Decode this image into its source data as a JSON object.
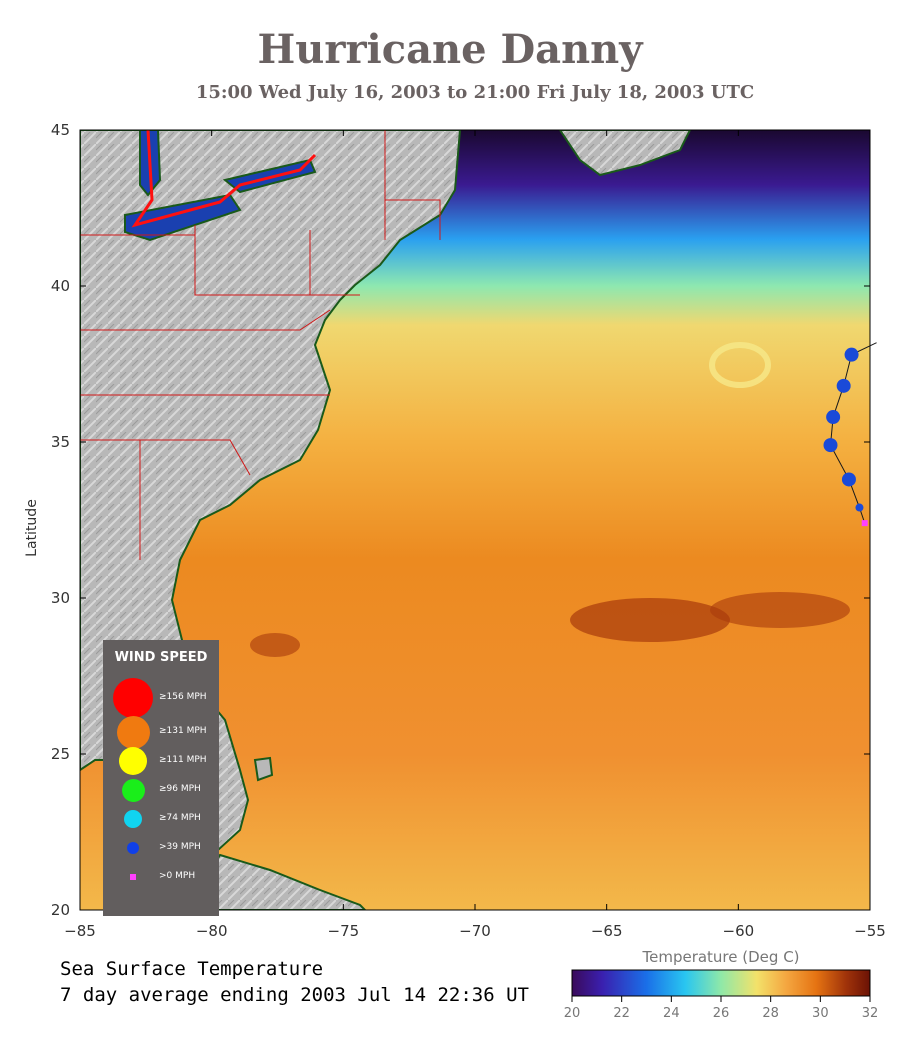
{
  "header": {
    "title": "Hurricane Danny",
    "subtitle": "15:00 Wed July 16, 2003 to 21:00 Fri July 18, 2003  UTC"
  },
  "caption": {
    "line1": "Sea Surface Temperature",
    "line2": "7 day average ending 2003 Jul 14 22:36 UT"
  },
  "axes": {
    "ylabel": "Latitude",
    "lon_min": -85,
    "lon_max": -55,
    "lat_min": 20,
    "lat_max": 45,
    "x_ticks": [
      "−85",
      "−80",
      "−75",
      "−70",
      "−65",
      "−60",
      "−55"
    ],
    "x_tick_values": [
      -85,
      -80,
      -75,
      -70,
      -65,
      -60,
      -55
    ],
    "y_ticks": [
      "45",
      "40",
      "35",
      "30",
      "25",
      "20"
    ],
    "y_tick_values": [
      45,
      40,
      35,
      30,
      25,
      20
    ]
  },
  "colorbar": {
    "title": "Temperature (Deg C)",
    "min": 20,
    "max": 32,
    "tick_labels": [
      "20",
      "22",
      "24",
      "26",
      "28",
      "30",
      "32"
    ],
    "tick_values": [
      20,
      22,
      24,
      26,
      28,
      30,
      32
    ],
    "colors": [
      "#3a0a5a",
      "#3a1fae",
      "#1a6fe8",
      "#29c6f0",
      "#8fe8a8",
      "#f3e26a",
      "#f4a640",
      "#e57312",
      "#a0330a",
      "#6b1205"
    ]
  },
  "legend": {
    "title": "WIND SPEED",
    "items": [
      {
        "label": "≥156 MPH",
        "color": "#ff0000",
        "size": 1.0
      },
      {
        "label": "≥131 MPH",
        "color": "#f07a10",
        "size": 0.82
      },
      {
        "label": "≥111 MPH",
        "color": "#ffff00",
        "size": 0.7
      },
      {
        "label": "≥96 MPH",
        "color": "#1aee1a",
        "size": 0.58
      },
      {
        "label": "≥74 MPH",
        "color": "#10d4f0",
        "size": 0.45
      },
      {
        "label": ">39 MPH",
        "color": "#1040e8",
        "size": 0.3
      },
      {
        "label": ">0 MPH",
        "color": "#ff40ff",
        "size": 0.16
      }
    ]
  },
  "track": {
    "points": [
      {
        "lon": -55.2,
        "lat": 32.4,
        "category": ">0 MPH"
      },
      {
        "lon": -55.4,
        "lat": 32.9,
        "category": ">39 MPH"
      },
      {
        "lon": -55.8,
        "lat": 33.8,
        "category": ">39 MPH"
      },
      {
        "lon": -56.5,
        "lat": 34.9,
        "category": ">39 MPH"
      },
      {
        "lon": -56.4,
        "lat": 35.8,
        "category": ">39 MPH"
      },
      {
        "lon": -56.0,
        "lat": 36.8,
        "category": ">39 MPH"
      },
      {
        "lon": -55.7,
        "lat": 37.8,
        "category": ">39 MPH"
      }
    ],
    "colors": {
      "line": "#1a1a1a",
      "storm": "#1a4ad8",
      "depression": "#ff40ff"
    }
  }
}
